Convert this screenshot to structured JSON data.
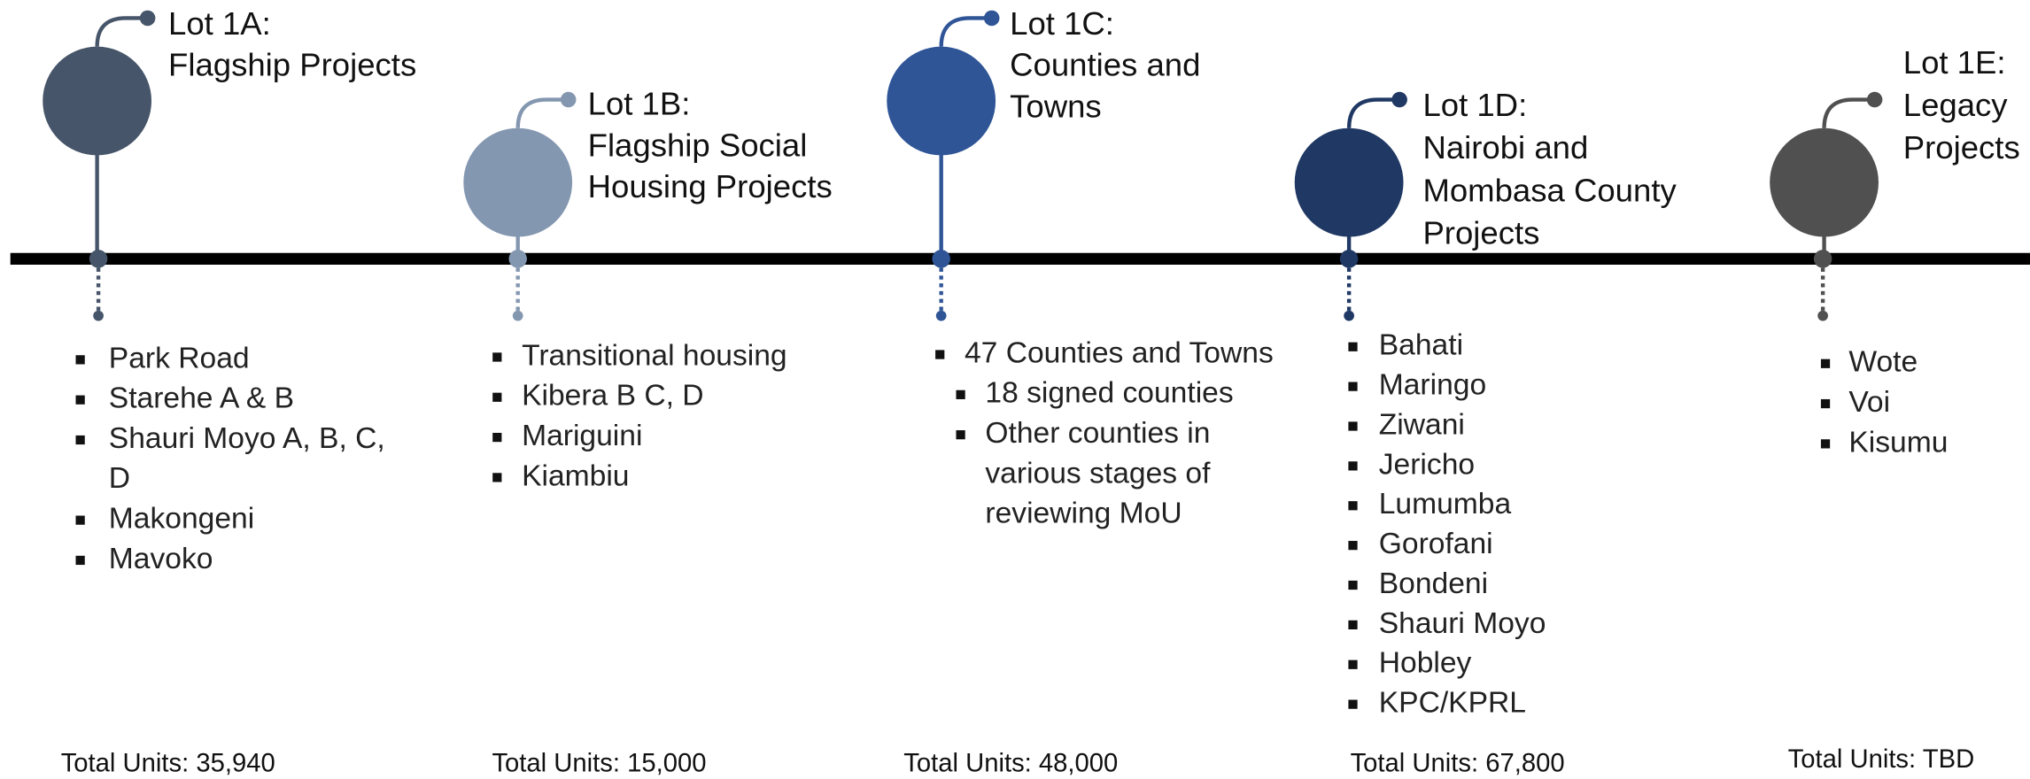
{
  "lots": [
    {
      "color": "#465569",
      "title_lines": [
        "Lot 1A:",
        "Flagship Projects"
      ],
      "items": [
        {
          "lines": [
            "Park Road"
          ]
        },
        {
          "lines": [
            "Starehe A & B"
          ]
        },
        {
          "lines": [
            "Shauri Moyo A, B, C,",
            "D"
          ]
        },
        {
          "lines": [
            "Makongeni"
          ]
        },
        {
          "lines": [
            "Mavoko"
          ]
        }
      ],
      "total": "Total Units: 35,940"
    },
    {
      "color": "#8497b0",
      "title_lines": [
        "Lot 1B:",
        "Flagship Social",
        "Housing Projects"
      ],
      "items": [
        {
          "lines": [
            "Transitional housing"
          ]
        },
        {
          "lines": [
            "Kibera B C, D"
          ]
        },
        {
          "lines": [
            "Mariguini"
          ]
        },
        {
          "lines": [
            "Kiambiu"
          ]
        }
      ],
      "total": "Total Units: 15,000"
    },
    {
      "color": "#2f5597",
      "title_lines": [
        "Lot 1C:",
        "Counties and",
        "Towns"
      ],
      "items": [
        {
          "lines": [
            "47 Counties and Towns"
          ],
          "children": [
            {
              "lines": [
                "18 signed counties"
              ]
            },
            {
              "lines": [
                "Other counties in",
                "various stages of",
                "reviewing MoU"
              ]
            }
          ]
        }
      ],
      "total": "Total Units: 48,000"
    },
    {
      "color": "#1f3864",
      "title_lines": [
        "Lot 1D:",
        "Nairobi and",
        "Mombasa County",
        "Projects"
      ],
      "items": [
        {
          "lines": [
            "Bahati"
          ]
        },
        {
          "lines": [
            "Maringo"
          ]
        },
        {
          "lines": [
            "Ziwani"
          ]
        },
        {
          "lines": [
            "Jericho"
          ]
        },
        {
          "lines": [
            "Lumumba"
          ]
        },
        {
          "lines": [
            "Gorofani"
          ]
        },
        {
          "lines": [
            "Bondeni"
          ]
        },
        {
          "lines": [
            "Shauri Moyo"
          ]
        },
        {
          "lines": [
            "Hobley"
          ]
        },
        {
          "lines": [
            "KPC/KPRL"
          ]
        }
      ],
      "total": "Total Units: 67,800"
    },
    {
      "color": "#505050",
      "title_lines": [
        "Lot 1E:",
        "Legacy",
        "Projects"
      ],
      "items": [
        {
          "lines": [
            "Wote"
          ]
        },
        {
          "lines": [
            "Voi"
          ]
        },
        {
          "lines": [
            "Kisumu"
          ]
        }
      ],
      "total": "Total Units: TBD"
    }
  ]
}
